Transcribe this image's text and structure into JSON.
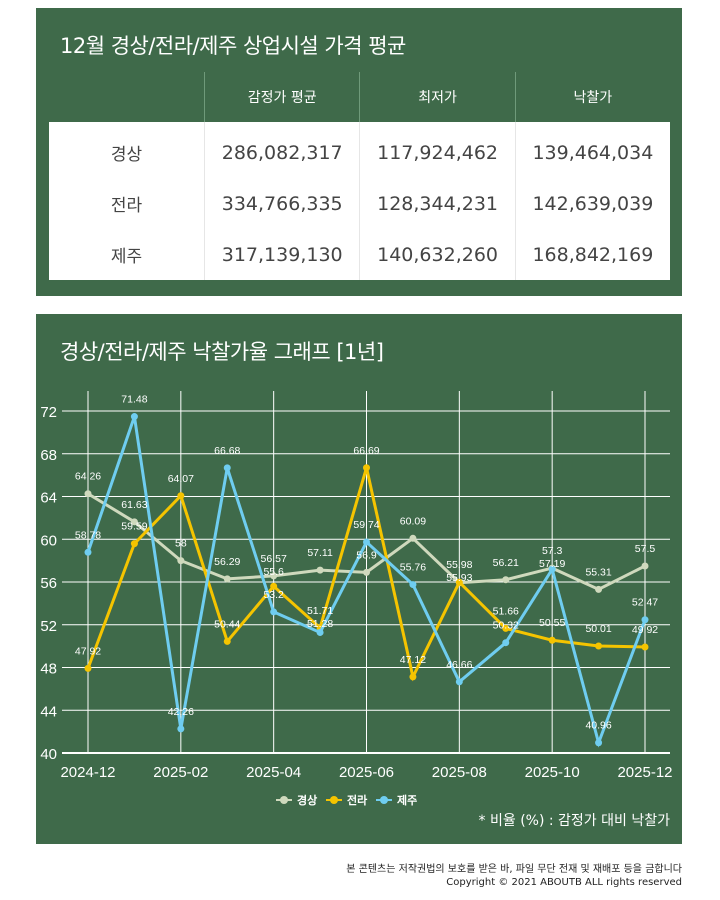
{
  "table_panel": {
    "title": "12월 경상/전라/제주 상업시설 가격 평균",
    "columns": [
      "",
      "감정가 평균",
      "최저가",
      "낙찰가"
    ],
    "rows": [
      [
        "경상",
        "286,082,317",
        "117,924,462",
        "139,464,034"
      ],
      [
        "전라",
        "334,766,335",
        "128,344,231",
        "142,639,039"
      ],
      [
        "제주",
        "317,139,130",
        "140,632,260",
        "168,842,169"
      ]
    ]
  },
  "chart_panel": {
    "title": "경상/전라/제주 낙찰가율 그래프 [1년]",
    "note": "* 비율 (%) : 감정가 대비 낙찰가"
  },
  "chart_data": {
    "type": "line",
    "x": [
      "2024-12",
      "2025-01",
      "2025-02",
      "2025-03",
      "2025-04",
      "2025-05",
      "2025-06",
      "2025-07",
      "2025-08",
      "2025-09",
      "2025-10",
      "2025-11",
      "2025-12"
    ],
    "x_tick_labels": [
      "2024-12",
      "2025-02",
      "2025-04",
      "2025-06",
      "2025-08",
      "2025-10",
      "2025-12"
    ],
    "ylim": [
      40,
      72
    ],
    "y_ticks": [
      40,
      44,
      48,
      52,
      56,
      60,
      64,
      68,
      72
    ],
    "grid": true,
    "legend": "bottom-center",
    "series": [
      {
        "name": "경상",
        "color": "#cfd9bd",
        "values": [
          64.26,
          61.63,
          58,
          56.29,
          56.57,
          57.11,
          56.9,
          60.09,
          55.93,
          56.21,
          57.3,
          55.31,
          57.5
        ]
      },
      {
        "name": "전라",
        "color": "#f5c400",
        "values": [
          47.92,
          59.59,
          64.07,
          50.44,
          55.6,
          51.71,
          66.69,
          47.12,
          55.98,
          51.66,
          50.55,
          50.01,
          49.92
        ]
      },
      {
        "name": "제주",
        "color": "#6fcdf0",
        "values": [
          58.78,
          71.48,
          42.26,
          66.68,
          53.2,
          51.28,
          59.74,
          55.76,
          46.66,
          50.32,
          57.19,
          40.96,
          52.47
        ]
      }
    ]
  },
  "footer": {
    "notice": "본 콘텐츠는 저작권법의 보호를 받은 바, 파일 무단 전재 및 재배포 등을 금합니다",
    "copyright": "Copyright © 2021 ABOUTB ALL rights reserved"
  }
}
